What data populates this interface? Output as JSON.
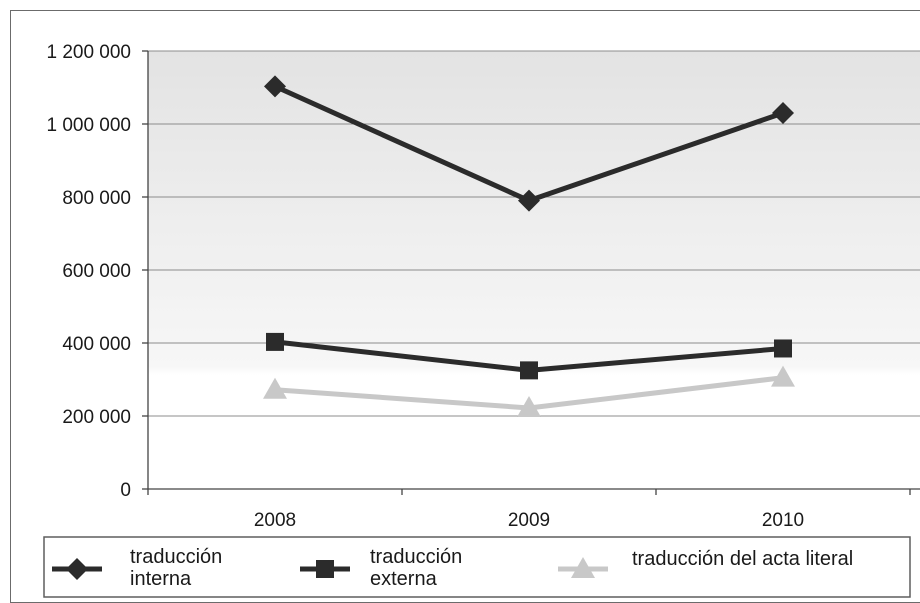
{
  "chart_data": {
    "type": "line",
    "title": "",
    "xlabel": "",
    "ylabel": "",
    "categories": [
      "2008",
      "2009",
      "2010"
    ],
    "ylim": [
      0,
      1200000
    ],
    "y_ticks": [
      0,
      200000,
      400000,
      600000,
      800000,
      1000000,
      1200000
    ],
    "y_tick_labels": [
      "0",
      "200 000",
      "400 000",
      "600 000",
      "800 000",
      "1 000 000",
      "1 200 000"
    ],
    "grid": true,
    "legend_position": "bottom",
    "series": [
      {
        "name": "traducción interna",
        "name_lines": [
          "traducción",
          "interna"
        ],
        "values": [
          1103000,
          790000,
          1030000
        ],
        "color": "#2b2b2b",
        "marker": "diamond"
      },
      {
        "name": "traducción externa",
        "name_lines": [
          "traducción",
          "externa"
        ],
        "values": [
          403000,
          325000,
          385000
        ],
        "color": "#2b2b2b",
        "marker": "square"
      },
      {
        "name": "traducción del acta literal",
        "name_lines": [
          "traducción del acta literal"
        ],
        "values": [
          272000,
          222000,
          305000
        ],
        "color": "#c8c8c8",
        "marker": "triangle"
      }
    ]
  }
}
